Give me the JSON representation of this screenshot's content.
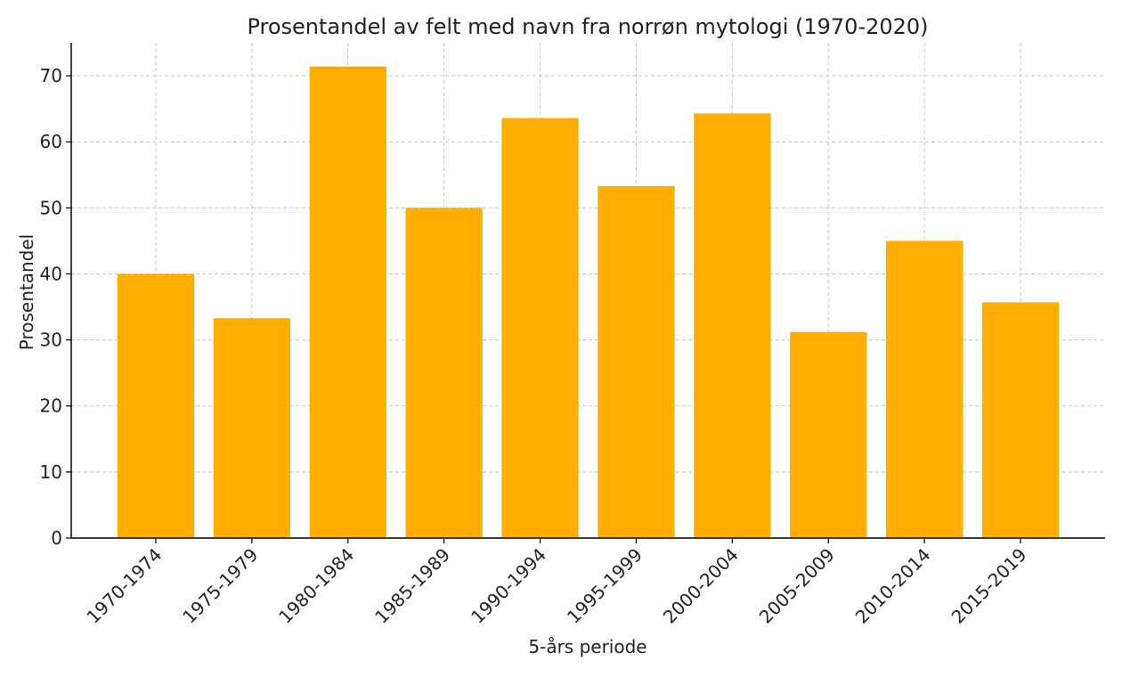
{
  "chart_data": {
    "type": "bar",
    "title": "Prosentandel av felt med navn fra norrøn mytologi (1970-2020)",
    "xlabel": "5-års periode",
    "ylabel": "Prosentandel",
    "categories": [
      "1970-1974",
      "1975-1979",
      "1980-1984",
      "1985-1989",
      "1990-1994",
      "1995-1999",
      "2000-2004",
      "2005-2009",
      "2010-2014",
      "2015-2019"
    ],
    "values": [
      40.0,
      33.3,
      71.4,
      50.0,
      63.6,
      53.3,
      64.3,
      31.2,
      45.0,
      35.7
    ],
    "ylim": [
      0,
      75
    ],
    "yticks": [
      0,
      10,
      20,
      30,
      40,
      50,
      60,
      70
    ],
    "grid": true,
    "bar_color": "#FFAE00"
  }
}
